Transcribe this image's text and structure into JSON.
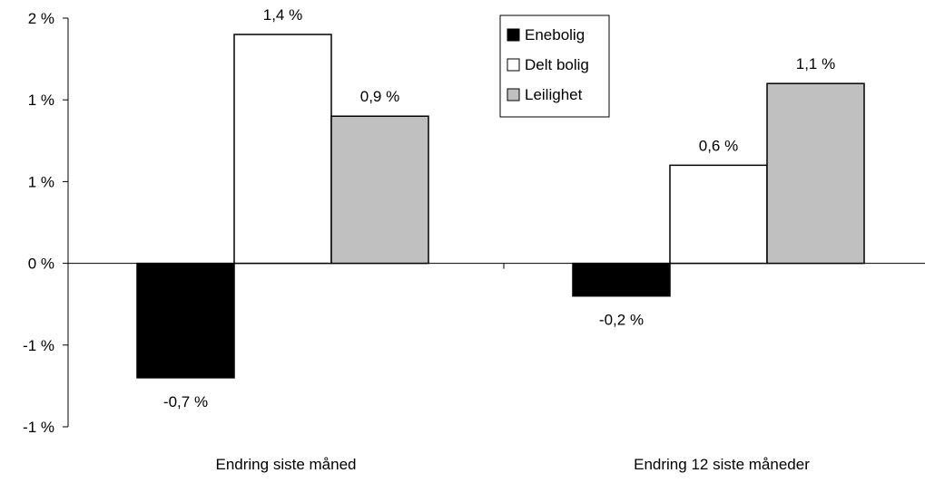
{
  "chart_data": {
    "type": "bar",
    "categories": [
      "Endring siste måned",
      "Endring 12 siste måneder"
    ],
    "series": [
      {
        "name": "Enebolig",
        "color": "#000000",
        "values": [
          -0.7,
          -0.2
        ],
        "labels": [
          "-0,7 %",
          "-0,2 %"
        ]
      },
      {
        "name": "Delt bolig",
        "color": "#ffffff",
        "values": [
          1.4,
          0.6
        ],
        "labels": [
          "1,4 %",
          "0,6 %"
        ]
      },
      {
        "name": "Leilighet",
        "color": "#c0c0c0",
        "values": [
          0.9,
          1.1
        ],
        "labels": [
          "0,9 %",
          "1,1 %"
        ]
      }
    ],
    "ytick_values": [
      -1.0,
      -0.5,
      0.0,
      0.5,
      1.0,
      1.5
    ],
    "ytick_labels": [
      "-1 %",
      "-1 %",
      "0 %",
      "1 %",
      "1 %",
      "2 %"
    ],
    "ylim": [
      -1.0,
      1.5
    ],
    "grid": false,
    "legend_position": "top-center"
  }
}
